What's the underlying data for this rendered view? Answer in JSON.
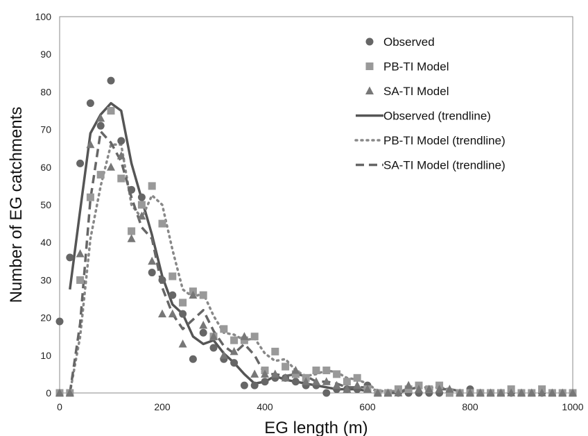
{
  "chart_data": {
    "type": "scatter",
    "title": "",
    "xlabel": "EG length (m)",
    "ylabel": "Number of EG catchments",
    "xlim": [
      0,
      1000
    ],
    "ylim": [
      0,
      100
    ],
    "xticks": [
      0,
      200,
      400,
      600,
      800,
      1000
    ],
    "yticks": [
      0,
      10,
      20,
      30,
      40,
      50,
      60,
      70,
      80,
      90,
      100
    ],
    "grid": false,
    "legend_position": "top-right",
    "series": [
      {
        "name": "Observed",
        "marker": "circle",
        "color": "#666666",
        "x": [
          0,
          20,
          40,
          60,
          80,
          100,
          120,
          140,
          160,
          180,
          200,
          220,
          240,
          260,
          280,
          300,
          320,
          340,
          360,
          380,
          400,
          420,
          440,
          460,
          480,
          500,
          520,
          540,
          560,
          580,
          600,
          620,
          640,
          660,
          680,
          700,
          720,
          740,
          760,
          780,
          800,
          820,
          840,
          860,
          880,
          900,
          920,
          940,
          960,
          980,
          1000
        ],
        "y": [
          19,
          36,
          61,
          77,
          71,
          83,
          67,
          54,
          52,
          32,
          30,
          26,
          21,
          9,
          16,
          12,
          9,
          8,
          2,
          2,
          3,
          4,
          4,
          3,
          2,
          2,
          0,
          1,
          1,
          1,
          2,
          0,
          0,
          0,
          0,
          0,
          0,
          0,
          0,
          0,
          1,
          0,
          0,
          0,
          0,
          0,
          0,
          0,
          0,
          0,
          0
        ]
      },
      {
        "name": "PB-TI Model",
        "marker": "square",
        "color": "#999999",
        "x": [
          0,
          20,
          40,
          60,
          80,
          100,
          120,
          140,
          160,
          180,
          200,
          220,
          240,
          260,
          280,
          300,
          320,
          340,
          360,
          380,
          400,
          420,
          440,
          460,
          480,
          500,
          520,
          540,
          560,
          580,
          600,
          620,
          640,
          660,
          680,
          700,
          720,
          740,
          760,
          780,
          800,
          820,
          840,
          860,
          880,
          900,
          920,
          940,
          960,
          980,
          1000
        ],
        "y": [
          0,
          0,
          30,
          52,
          58,
          75,
          57,
          43,
          50,
          55,
          45,
          31,
          24,
          27,
          26,
          15,
          17,
          14,
          14,
          15,
          6,
          11,
          7,
          5,
          4,
          6,
          6,
          5,
          3,
          4,
          1,
          0,
          0,
          1,
          1,
          2,
          1,
          2,
          0,
          0,
          0,
          0,
          0,
          0,
          1,
          0,
          0,
          1,
          0,
          0,
          0
        ]
      },
      {
        "name": "SA-TI Model",
        "marker": "triangle",
        "color": "#777777",
        "x": [
          0,
          20,
          40,
          60,
          80,
          100,
          120,
          140,
          160,
          180,
          200,
          220,
          240,
          260,
          280,
          300,
          320,
          340,
          360,
          380,
          400,
          420,
          440,
          460,
          480,
          500,
          520,
          540,
          560,
          580,
          600,
          620,
          640,
          660,
          680,
          700,
          720,
          740,
          760,
          780,
          800,
          820,
          840,
          860,
          880,
          900,
          920,
          940,
          960,
          980,
          1000
        ],
        "y": [
          0,
          0,
          37,
          66,
          73,
          60,
          63,
          41,
          47,
          35,
          21,
          21,
          13,
          26,
          18,
          15,
          10,
          11,
          15,
          5,
          5,
          5,
          4,
          6,
          3,
          3,
          3,
          2,
          1,
          2,
          1,
          0,
          0,
          0,
          2,
          1,
          1,
          1,
          1,
          0,
          0,
          0,
          0,
          0,
          0,
          0,
          0,
          0,
          0,
          0,
          0
        ]
      },
      {
        "name": "Observed (trendline)",
        "line": "solid",
        "color": "#555555",
        "x": [
          20,
          40,
          60,
          80,
          100,
          120,
          140,
          160,
          180,
          200,
          220,
          240,
          260,
          280,
          300,
          320,
          340,
          360,
          380,
          400,
          420,
          440,
          460,
          480,
          500,
          520,
          540,
          560,
          580,
          600
        ],
        "y": [
          27.5,
          48.5,
          69,
          74,
          77,
          75,
          61,
          51.5,
          42,
          31,
          23.5,
          21,
          15,
          13,
          14,
          10.5,
          8,
          5,
          2.5,
          3,
          4.5,
          3.5,
          3,
          2.5,
          2,
          1.5,
          1,
          1,
          1,
          0.5
        ]
      },
      {
        "name": "PB-TI Model (trendline)",
        "line": "dotted",
        "color": "#888888",
        "x": [
          20,
          40,
          60,
          80,
          100,
          120,
          140,
          160,
          180,
          200,
          220,
          240,
          260,
          280,
          300,
          320,
          340,
          360,
          380,
          400,
          420,
          440,
          460,
          480,
          500,
          520,
          540,
          560,
          580,
          600,
          620,
          640,
          660,
          680,
          700,
          720,
          740,
          760,
          780
        ],
        "y": [
          0,
          15,
          41,
          55,
          66,
          66,
          50,
          46.5,
          52.5,
          50,
          38,
          27.5,
          25.5,
          26.5,
          20.5,
          16,
          15.5,
          14,
          14.5,
          10.5,
          8.5,
          9,
          6,
          4.5,
          5,
          6,
          5.5,
          4,
          3.5,
          2.5,
          0.5,
          0.5,
          0.5,
          1,
          1.5,
          1.5,
          1.5,
          1,
          0.5
        ]
      },
      {
        "name": "SA-TI Model (trendline)",
        "line": "dashed",
        "color": "#666666",
        "x": [
          20,
          40,
          60,
          80,
          100,
          120,
          140,
          160,
          180,
          200,
          220,
          240,
          260,
          280,
          300,
          320,
          340,
          360,
          380,
          400,
          420,
          440,
          460,
          480,
          500,
          520,
          540,
          560,
          580,
          600,
          620,
          640,
          660,
          680,
          700,
          720,
          740,
          760,
          780
        ],
        "y": [
          0,
          18.5,
          51.5,
          69.5,
          66.5,
          61.5,
          52,
          44,
          41,
          28,
          21,
          17,
          19.5,
          22,
          16.5,
          12.5,
          10.5,
          13,
          10,
          5,
          5,
          4.5,
          5,
          4.5,
          3,
          3,
          2.5,
          1.5,
          1.5,
          1.5,
          0.5,
          0,
          0,
          1,
          1.5,
          1,
          1,
          1,
          0.5
        ]
      }
    ]
  }
}
